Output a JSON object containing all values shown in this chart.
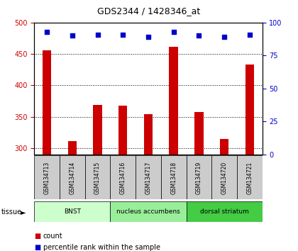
{
  "title": "GDS2344 / 1428346_at",
  "samples": [
    "GSM134713",
    "GSM134714",
    "GSM134715",
    "GSM134716",
    "GSM134717",
    "GSM134718",
    "GSM134719",
    "GSM134720",
    "GSM134721"
  ],
  "counts": [
    456,
    311,
    369,
    368,
    354,
    461,
    358,
    315,
    433
  ],
  "percentiles": [
    93,
    90,
    91,
    91,
    89,
    93,
    90,
    89,
    91
  ],
  "ylim_left": [
    290,
    500
  ],
  "ylim_right": [
    0,
    100
  ],
  "yticks_left": [
    300,
    350,
    400,
    450,
    500
  ],
  "yticks_right": [
    0,
    25,
    50,
    75,
    100
  ],
  "bar_color": "#cc0000",
  "dot_color": "#0000cc",
  "bar_bottom": 290,
  "tissue_groups": [
    {
      "label": "BNST",
      "start": 0,
      "end": 3,
      "color": "#ccffcc"
    },
    {
      "label": "nucleus accumbens",
      "start": 3,
      "end": 6,
      "color": "#99ee99"
    },
    {
      "label": "dorsal striatum",
      "start": 6,
      "end": 9,
      "color": "#44cc44"
    }
  ],
  "tissue_label": "tissue",
  "legend_count_label": "count",
  "legend_pct_label": "percentile rank within the sample",
  "sample_label_bg": "#cccccc"
}
